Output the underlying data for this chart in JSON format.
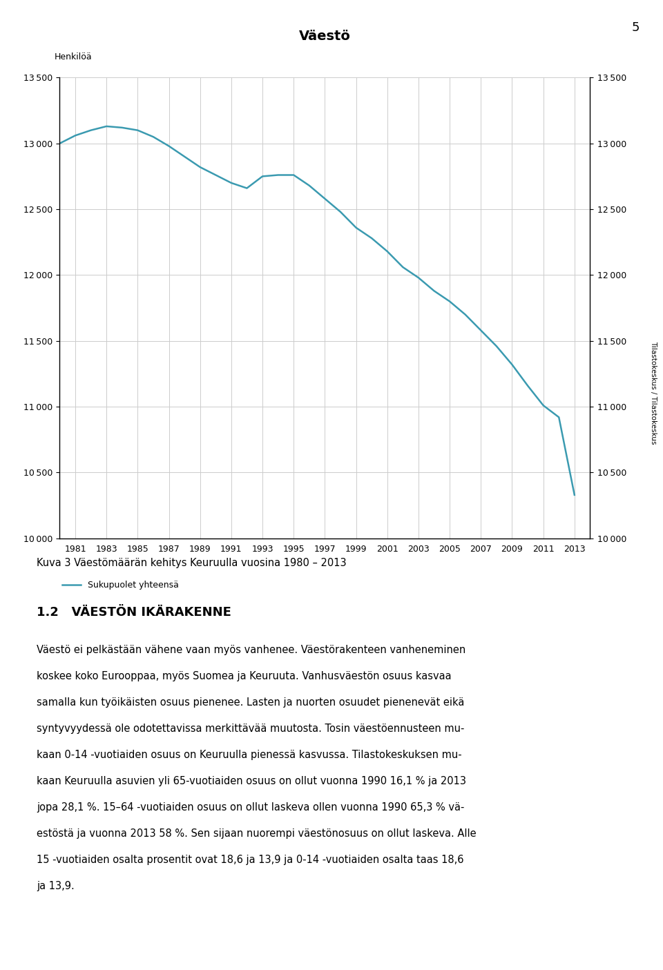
{
  "title": "Väestö",
  "ylabel_left": "Henkilöä",
  "line_color": "#3a9ab0",
  "line_width": 1.8,
  "legend_label": "Sukupuolet yhteensä",
  "ylim": [
    10000,
    13500
  ],
  "yticks": [
    10000,
    10500,
    11000,
    11500,
    12000,
    12500,
    13000,
    13500
  ],
  "page_number": "5",
  "caption": "Kuva 3 Väestömäärän kehitys Keuruulla vuosina 1980 – 2013",
  "section_title": "1.2   VÄESTÖN IKÄRAKENNE",
  "body_lines": [
    "Väestö ei pelkästään vähene vaan myös vanhenee. Väestörakenteen vanheneminen",
    "koskee koko Eurooppaa, myös Suomea ja Keuruuta. Vanhusväestön osuus kasvaa",
    "samalla kun työikäisten osuus pienenee. Lasten ja nuorten osuudet pienenevät eikä",
    "syntyvyydessä ole odotettavissa merkittävää muutosta. Tosin väestöennusteen mu-",
    "kaan 0-14 -vuotiaiden osuus on Keuruulla pienessä kasvussa. Tilastokeskuksen mu-",
    "kaan Keuruulla asuvien yli 65-vuotiaiden osuus on ollut vuonna 1990 16,1 % ja 2013",
    "jopa 28,1 %. 15–64 -vuotiaiden osuus on ollut laskeva ollen vuonna 1990 65,3 % vä-",
    "estöstä ja vuonna 2013 58 %. Sen sijaan nuorempi väestönosuus on ollut laskeva. Alle",
    "15 -vuotiaiden osalta prosentit ovat 18,6 ja 13,9 ja 0-14 -vuotiaiden osalta taas 18,6",
    "ja 13,9."
  ],
  "years": [
    1980,
    1981,
    1982,
    1983,
    1984,
    1985,
    1986,
    1987,
    1988,
    1989,
    1990,
    1991,
    1992,
    1993,
    1994,
    1995,
    1996,
    1997,
    1998,
    1999,
    2000,
    2001,
    2002,
    2003,
    2004,
    2005,
    2006,
    2007,
    2008,
    2009,
    2010,
    2011,
    2012,
    2013
  ],
  "values": [
    13000,
    13060,
    13100,
    13130,
    13120,
    13100,
    13050,
    12980,
    12900,
    12820,
    12760,
    12700,
    12660,
    12750,
    12760,
    12760,
    12680,
    12580,
    12480,
    12360,
    12280,
    12180,
    12060,
    11980,
    11880,
    11800,
    11700,
    11580,
    11460,
    11320,
    11160,
    11010,
    10920,
    10330
  ],
  "xtick_years": [
    1981,
    1983,
    1985,
    1987,
    1989,
    1991,
    1993,
    1995,
    1997,
    1999,
    2001,
    2003,
    2005,
    2007,
    2009,
    2011,
    2013
  ],
  "background_color": "#ffffff",
  "grid_color": "#cccccc"
}
